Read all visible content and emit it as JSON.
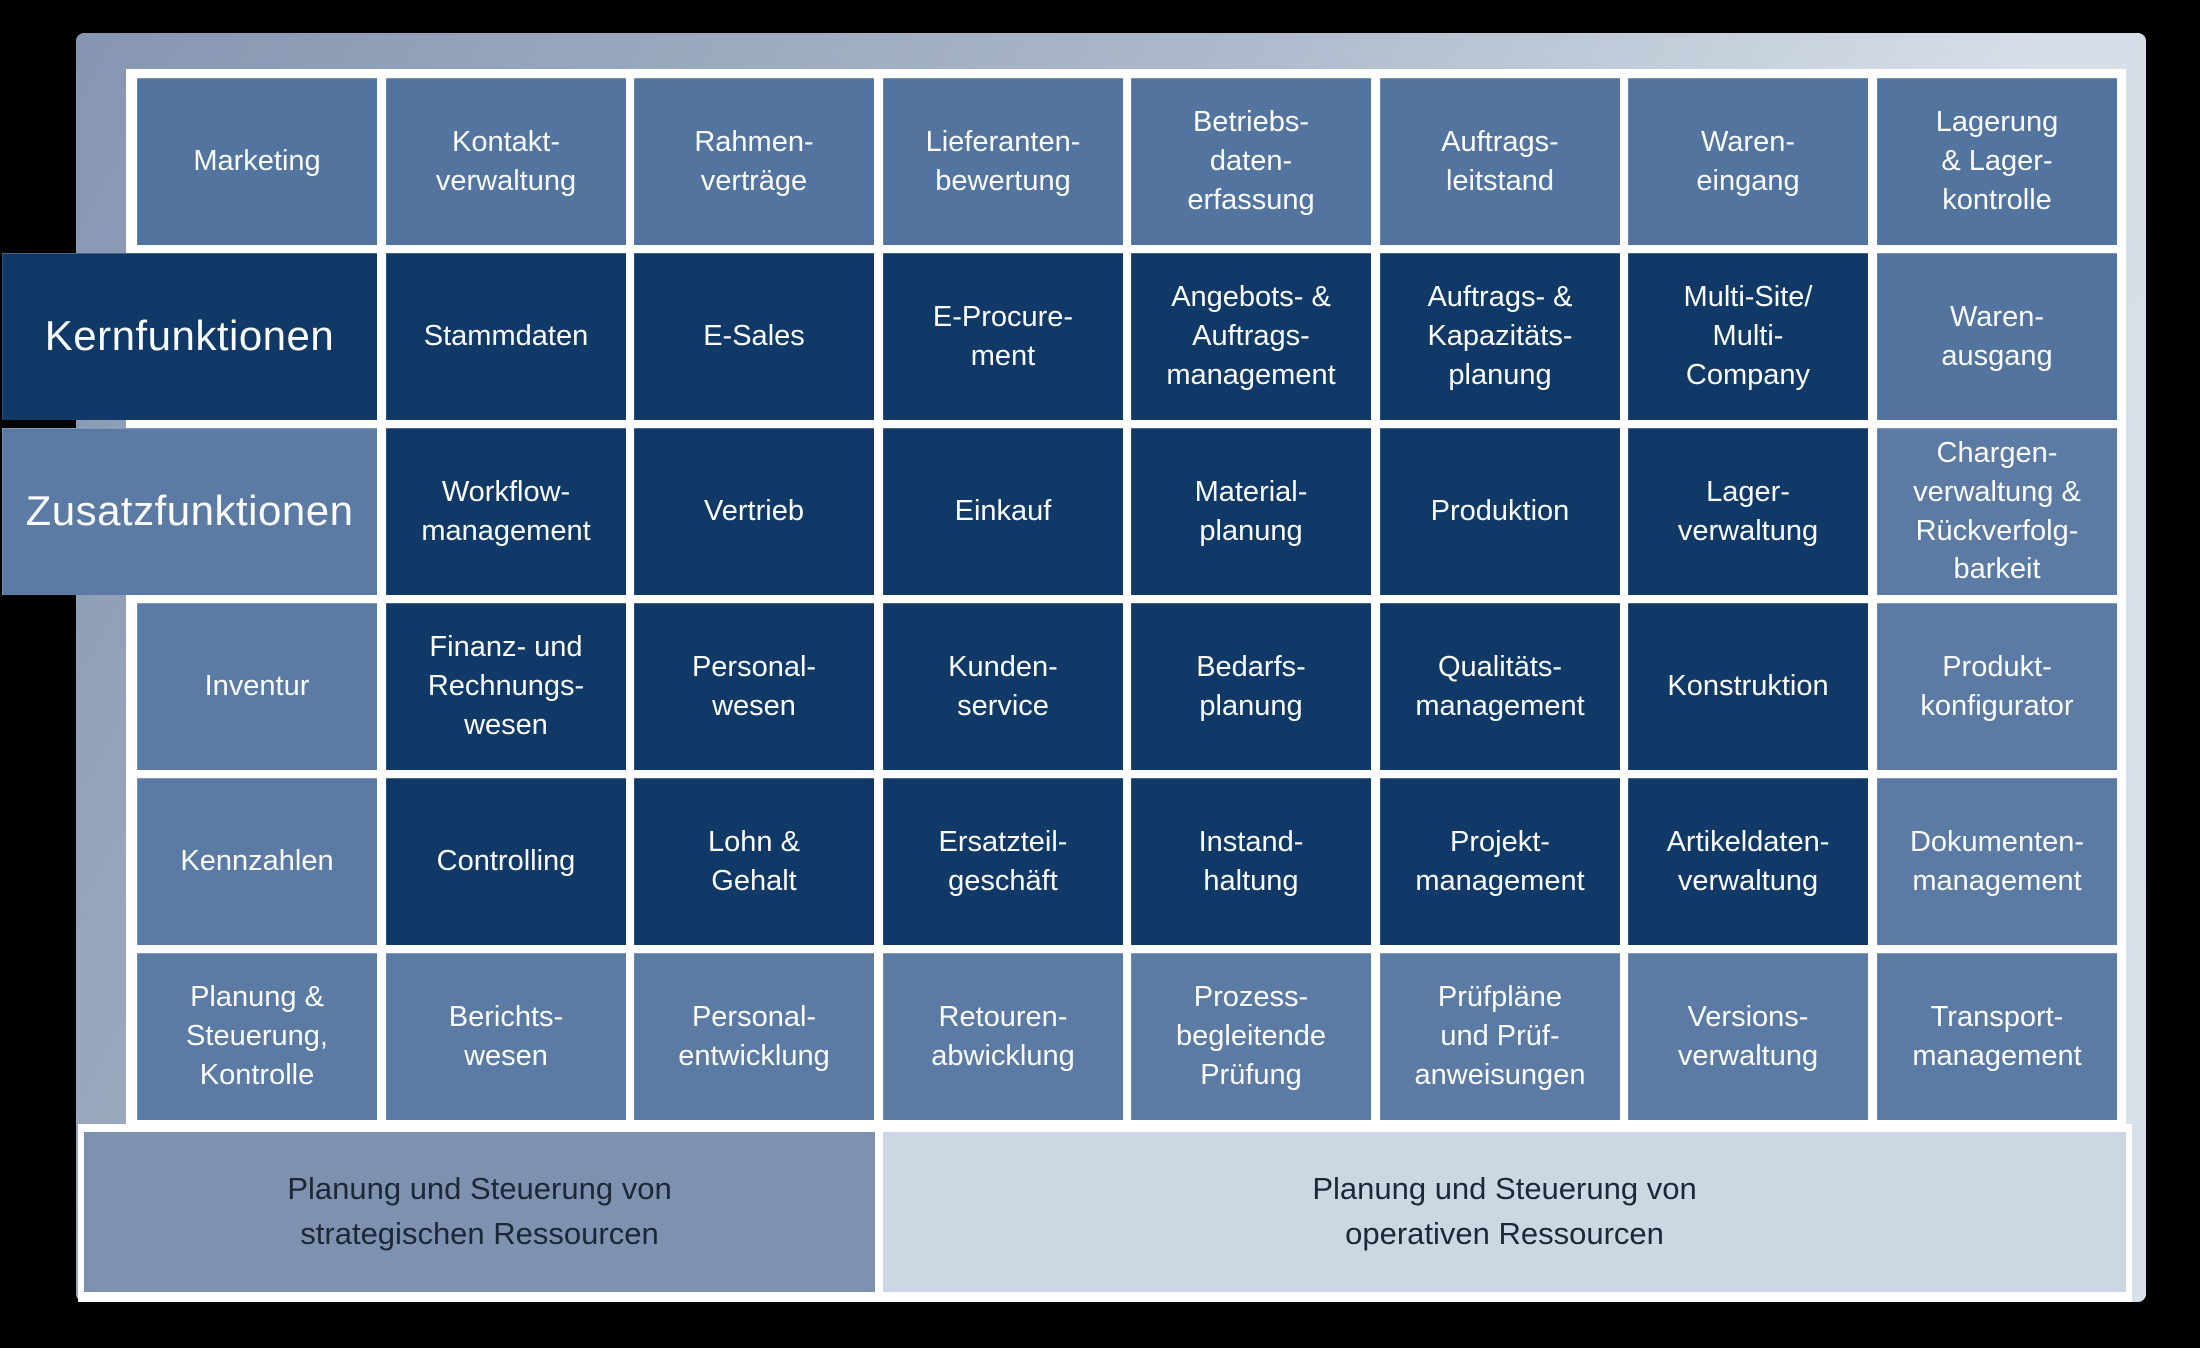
{
  "colors": {
    "dark_cell": "#103968",
    "mid_cell": "#52749e",
    "light_cell": "#5c7ba4",
    "band_strategic": "#7e92b0",
    "band_operative": "#cdd6e3",
    "panel_gradient_start": "#8696b1",
    "panel_gradient_end": "#d8e0ea",
    "cell_text": "#fafcfe",
    "band_text": "#1b2838",
    "background": "#000000"
  },
  "grid": {
    "rows": [
      {
        "cells": [
          {
            "label": "Marketing",
            "tone": "mid"
          },
          {
            "label": "Kontakt-\nverwaltung",
            "tone": "mid"
          },
          {
            "label": "Rahmen-\nverträge",
            "tone": "mid"
          },
          {
            "label": "Lieferanten-\nbewertung",
            "tone": "mid"
          },
          {
            "label": "Betriebs-\ndaten-\nerfassung",
            "tone": "mid"
          },
          {
            "label": "Auftrags-\nleitstand",
            "tone": "mid"
          },
          {
            "label": "Waren-\neingang",
            "tone": "mid"
          },
          {
            "label": "Lagerung\n& Lager-\nkontrolle",
            "tone": "mid"
          }
        ]
      },
      {
        "cells": [
          {
            "label": "Kernfunktionen",
            "tone": "dark",
            "header": true
          },
          {
            "label": "Stammdaten",
            "tone": "dark"
          },
          {
            "label": "E-Sales",
            "tone": "dark"
          },
          {
            "label": "E-Procure-\nment",
            "tone": "dark"
          },
          {
            "label": "Angebots- &\nAuftrags-\nmanagement",
            "tone": "dark"
          },
          {
            "label": "Auftrags- &\nKapazitäts-\nplanung",
            "tone": "dark"
          },
          {
            "label": "Multi-Site/\nMulti-\nCompany",
            "tone": "dark"
          },
          {
            "label": "Waren-\nausgang",
            "tone": "mid"
          }
        ]
      },
      {
        "cells": [
          {
            "label": "Zusatzfunktionen",
            "tone": "light",
            "header": true
          },
          {
            "label": "Workflow-\nmanagement",
            "tone": "dark"
          },
          {
            "label": "Vertrieb",
            "tone": "dark"
          },
          {
            "label": "Einkauf",
            "tone": "dark"
          },
          {
            "label": "Material-\nplanung",
            "tone": "dark"
          },
          {
            "label": "Produktion",
            "tone": "dark"
          },
          {
            "label": "Lager-\nverwaltung",
            "tone": "dark"
          },
          {
            "label": "Chargen-\nverwaltung &\nRückverfolg-\nbarkeit",
            "tone": "light"
          }
        ]
      },
      {
        "cells": [
          {
            "label": "Inventur",
            "tone": "light"
          },
          {
            "label": "Finanz- und\nRechnungs-\nwesen",
            "tone": "dark"
          },
          {
            "label": "Personal-\nwesen",
            "tone": "dark"
          },
          {
            "label": "Kunden-\nservice",
            "tone": "dark"
          },
          {
            "label": "Bedarfs-\nplanung",
            "tone": "dark"
          },
          {
            "label": "Qualitäts-\nmanagement",
            "tone": "dark"
          },
          {
            "label": "Konstruktion",
            "tone": "dark"
          },
          {
            "label": "Produkt-\nkonfigurator",
            "tone": "light"
          }
        ]
      },
      {
        "cells": [
          {
            "label": "Kennzahlen",
            "tone": "light"
          },
          {
            "label": "Controlling",
            "tone": "dark"
          },
          {
            "label": "Lohn &\nGehalt",
            "tone": "dark"
          },
          {
            "label": "Ersatzteil-\ngeschäft",
            "tone": "dark"
          },
          {
            "label": "Instand-\nhaltung",
            "tone": "dark"
          },
          {
            "label": "Projekt-\nmanagement",
            "tone": "dark"
          },
          {
            "label": "Artikeldaten-\nverwaltung",
            "tone": "dark"
          },
          {
            "label": "Dokumenten-\nmanagement",
            "tone": "light"
          }
        ]
      },
      {
        "cells": [
          {
            "label": "Planung &\nSteuerung,\nKontrolle",
            "tone": "light"
          },
          {
            "label": "Berichts-\nwesen",
            "tone": "light"
          },
          {
            "label": "Personal-\nentwicklung",
            "tone": "light"
          },
          {
            "label": "Retouren-\nabwicklung",
            "tone": "light"
          },
          {
            "label": "Prozess-\nbegleitende\nPrüfung",
            "tone": "light"
          },
          {
            "label": "Prüfpläne\nund Prüf-\nanweisungen",
            "tone": "light"
          },
          {
            "label": "Versions-\nverwaltung",
            "tone": "light"
          },
          {
            "label": "Transport-\nmanagement",
            "tone": "light"
          }
        ]
      }
    ]
  },
  "footers": {
    "left": "Planung und Steuerung von\nstrategischen Ressourcen",
    "right": "Planung und Steuerung von\noperativen Ressourcen"
  }
}
